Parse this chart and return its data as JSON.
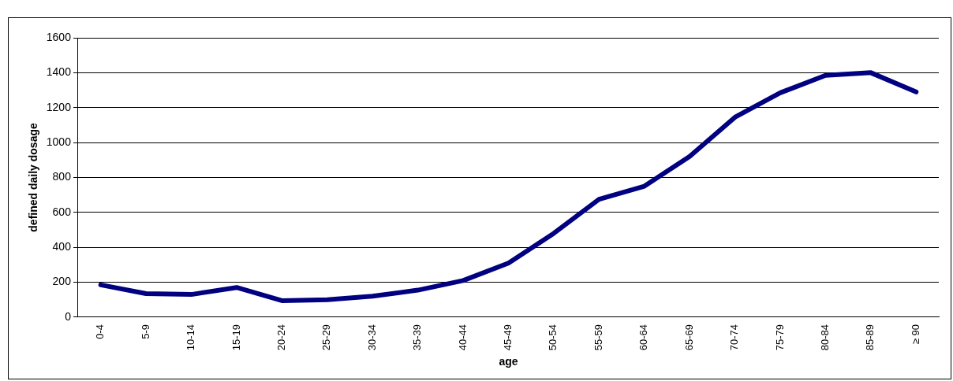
{
  "chart_data": {
    "type": "line",
    "xlabel": "age",
    "ylabel": "defined daily dosage",
    "categories": [
      "0-4",
      "5-9",
      "10-14",
      "15-19",
      "20-24",
      "25-29",
      "30-34",
      "35-39",
      "40-44",
      "45-49",
      "50-54",
      "55-59",
      "60-64",
      "65-69",
      "70-74",
      "75-79",
      "80-84",
      "85-89",
      "≥ 90"
    ],
    "series": [
      {
        "color": "#000080",
        "values": [
          185,
          135,
          130,
          170,
          95,
          100,
          120,
          155,
          210,
          310,
          480,
          675,
          750,
          920,
          1145,
          1285,
          1385,
          1400,
          1290
        ]
      }
    ],
    "ylim": [
      0,
      1600
    ],
    "yticks": [
      0,
      200,
      400,
      600,
      800,
      1000,
      1200,
      1400,
      1600
    ],
    "grid": "y",
    "legend": false,
    "marker": "none",
    "line_style": "solid"
  }
}
